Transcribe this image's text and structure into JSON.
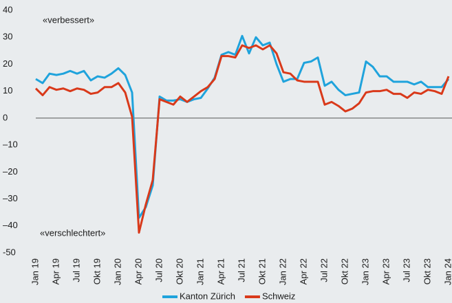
{
  "chart_data": {
    "type": "line",
    "annotations": [
      "«verbessert»",
      "«verschlechtert»"
    ],
    "categories": [
      "Jan 19",
      null,
      null,
      "Apr 19",
      null,
      null,
      "Jul 19",
      null,
      null,
      "Okt 19",
      null,
      null,
      "Jan 20",
      null,
      null,
      "Apr 20",
      null,
      null,
      "Jul 20",
      null,
      null,
      "Okt 20",
      null,
      null,
      "Jan 21",
      null,
      null,
      "Apr 21",
      null,
      null,
      "Jul 21",
      null,
      null,
      "Okt 21",
      null,
      null,
      "Jan 22",
      null,
      null,
      "Apr 22",
      null,
      null,
      "Jul 22",
      null,
      null,
      "Okt 22",
      null,
      null,
      "Jan 23",
      null,
      null,
      "Apr 23",
      null,
      null,
      "Jul 23",
      null,
      null,
      "Okt 23",
      null,
      null,
      "Jan 24"
    ],
    "series": [
      {
        "name": "Kanton Zürich",
        "color": "#1fa3dc",
        "values": [
          14.5,
          13,
          16.5,
          16,
          16.5,
          17.5,
          16.5,
          17.5,
          14,
          15.5,
          15,
          16.5,
          18.5,
          16,
          9.5,
          -37,
          -33,
          -25,
          8,
          6.5,
          6.5,
          7,
          6,
          7,
          7.5,
          11,
          15,
          23.5,
          24.5,
          23.5,
          30.5,
          24,
          30,
          27,
          28,
          20,
          13.5,
          14.5,
          14.5,
          20.5,
          21,
          22.5,
          12,
          13.5,
          10.5,
          8.5,
          9,
          9.5,
          21,
          19,
          15.5,
          15.5,
          13.5,
          13.5,
          13.5,
          12.5,
          13.5,
          11.5,
          11.5,
          11.5,
          14.5
        ]
      },
      {
        "name": "Schweiz",
        "color": "#d9391a",
        "values": [
          11,
          8.5,
          11.5,
          10.5,
          11,
          10,
          11,
          10.5,
          9,
          9.5,
          11.5,
          11.5,
          13,
          9.5,
          0.5,
          -42.5,
          -32,
          -23,
          7,
          6,
          5,
          8,
          6,
          8,
          10,
          11.5,
          14.5,
          23,
          23,
          22.5,
          27,
          26,
          27,
          25.5,
          27,
          24,
          17,
          16.5,
          14,
          13.5,
          13.5,
          13.5,
          5,
          6,
          4.5,
          2.5,
          3.5,
          5.5,
          9.5,
          10,
          10,
          10.5,
          9,
          9,
          7.5,
          9.5,
          9,
          10.5,
          10,
          9,
          15.5
        ]
      }
    ],
    "ylim": [
      -50,
      40
    ],
    "yticks": [
      -50,
      {
        "value": -40,
        "label": "–40"
      },
      {
        "value": -30,
        "label": "–30"
      },
      {
        "value": -20,
        "label": "–20"
      },
      {
        "value": -10,
        "label": "–10"
      },
      0,
      10,
      20,
      30,
      40
    ],
    "zero_line": true,
    "legend": "bottom"
  }
}
